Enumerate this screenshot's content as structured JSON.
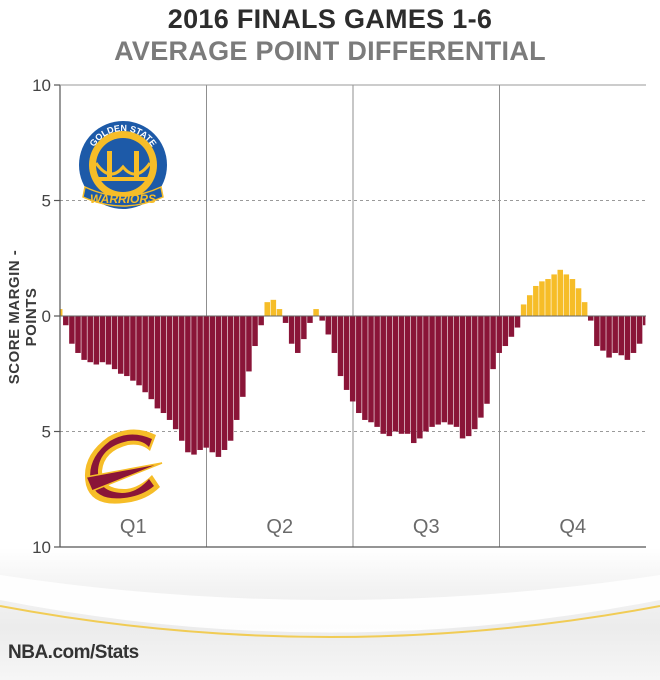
{
  "titles": {
    "line1": "2016 FINALS GAMES 1-6",
    "line2": "AVERAGE POINT DIFFERENTIAL"
  },
  "footer": "NBA.com/Stats",
  "colors": {
    "warriors": "#f6bd28",
    "cavaliers": "#8a1538",
    "grid": "#9a9a9a"
  },
  "logos": {
    "top": {
      "icon": "warriors-logo-icon",
      "team": "Golden State Warriors",
      "arc_text": "GOLDEN STATE",
      "word": "WARRIORS"
    },
    "bottom": {
      "icon": "cavaliers-logo-icon",
      "team": "Cleveland Cavaliers"
    }
  },
  "chart_data": {
    "type": "area",
    "ylabel": "SCORE MARGIN - POINTS",
    "xlabel": "",
    "yticks": [
      "10",
      "5",
      "0",
      "5",
      "10"
    ],
    "y_tick_values": [
      10,
      5,
      0,
      -5,
      -10
    ],
    "ylim": [
      -10,
      10
    ],
    "xlim": [
      0,
      48
    ],
    "x_unit": "minutes",
    "quarters": [
      "Q1",
      "Q2",
      "Q3",
      "Q4"
    ],
    "grid": true,
    "series": [
      {
        "team": "Warriors (positive) / Cavaliers (negative)",
        "x": [
          0,
          0.5,
          1,
          1.5,
          2,
          2.5,
          3,
          3.5,
          4,
          4.5,
          5,
          5.5,
          6,
          6.5,
          7,
          7.5,
          8,
          8.5,
          9,
          9.5,
          10,
          10.5,
          11,
          11.5,
          12,
          12.5,
          13,
          13.5,
          14,
          14.5,
          15,
          15.5,
          16,
          16.5,
          17,
          17.5,
          18,
          18.5,
          19,
          19.5,
          20,
          20.5,
          21,
          21.5,
          22,
          22.5,
          23,
          23.5,
          24,
          24.5,
          25,
          25.5,
          26,
          26.5,
          27,
          27.5,
          28,
          28.5,
          29,
          29.5,
          30,
          30.5,
          31,
          31.5,
          32,
          32.5,
          33,
          33.5,
          34,
          34.5,
          35,
          35.5,
          36,
          36.5,
          37,
          37.5,
          38,
          38.5,
          39,
          39.5,
          40,
          40.5,
          41,
          41.5,
          42,
          42.5,
          43,
          43.5,
          44,
          44.5,
          45,
          45.5,
          46,
          46.5,
          47,
          47.5,
          48
        ],
        "values": [
          0.3,
          -0.4,
          -1.2,
          -1.6,
          -1.9,
          -2.0,
          -2.1,
          -2.0,
          -2.1,
          -2.3,
          -2.5,
          -2.6,
          -2.8,
          -3.0,
          -3.3,
          -3.6,
          -4.0,
          -4.2,
          -4.5,
          -4.9,
          -5.4,
          -5.9,
          -6.0,
          -5.8,
          -5.7,
          -5.9,
          -6.1,
          -5.8,
          -5.4,
          -4.5,
          -3.5,
          -2.4,
          -1.3,
          -0.4,
          0.6,
          0.7,
          0.3,
          -0.3,
          -1.2,
          -1.6,
          -1.0,
          -0.3,
          0.3,
          -0.2,
          -0.8,
          -1.6,
          -2.6,
          -3.2,
          -3.7,
          -4.2,
          -4.5,
          -4.6,
          -4.8,
          -5.1,
          -5.2,
          -5.0,
          -5.1,
          -5.1,
          -5.5,
          -5.3,
          -5.0,
          -4.8,
          -4.7,
          -4.6,
          -4.7,
          -4.8,
          -5.3,
          -5.2,
          -4.9,
          -4.4,
          -3.8,
          -2.3,
          -1.6,
          -1.3,
          -0.9,
          -0.5,
          0.5,
          0.9,
          1.3,
          1.5,
          1.6,
          1.8,
          2.0,
          1.8,
          1.6,
          1.2,
          0.6,
          -0.2,
          -1.3,
          -1.5,
          -1.8,
          -1.6,
          -1.7,
          -1.9,
          -1.6,
          -1.2,
          -0.4
        ]
      }
    ]
  }
}
